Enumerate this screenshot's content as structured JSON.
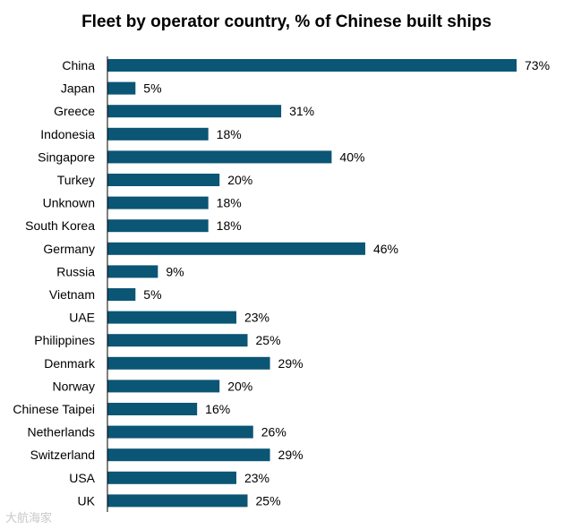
{
  "chart_data": {
    "type": "bar",
    "orientation": "horizontal",
    "title": "Fleet by operator country, % of Chinese built ships",
    "xlabel": "",
    "ylabel": "",
    "value_suffix": "%",
    "xlim": [
      0,
      80
    ],
    "grid": false,
    "bar_color": "#0b5575",
    "categories": [
      "China",
      "Japan",
      "Greece",
      "Indonesia",
      "Singapore",
      "Turkey",
      "Unknown",
      "South Korea",
      "Germany",
      "Russia",
      "Vietnam",
      "UAE",
      "Philippines",
      "Denmark",
      "Norway",
      "Chinese Taipei",
      "Netherlands",
      "Switzerland",
      "USA",
      "UK"
    ],
    "values": [
      73,
      5,
      31,
      18,
      40,
      20,
      18,
      18,
      46,
      9,
      5,
      23,
      25,
      29,
      20,
      16,
      26,
      29,
      23,
      25
    ]
  },
  "watermark": {
    "text": "大航海家"
  }
}
